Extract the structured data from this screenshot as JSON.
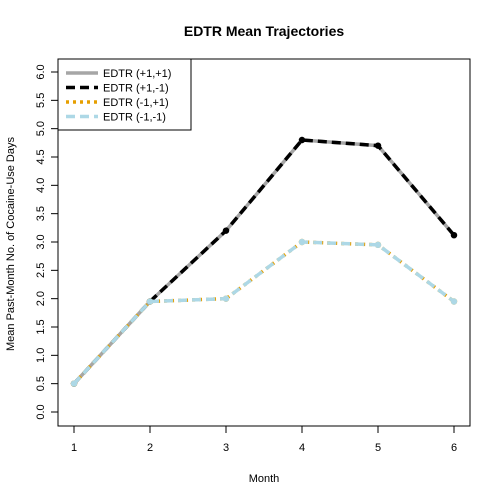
{
  "chart_data": {
    "type": "line",
    "title": "EDTR Mean Trajectories",
    "xlabel": "Month",
    "ylabel": "Mean Past-Month No. of Cocaine-Use Days",
    "x": [
      1,
      2,
      3,
      4,
      5,
      6
    ],
    "xlim": [
      1,
      6
    ],
    "ylim": [
      0,
      6
    ],
    "xticks": [
      "1",
      "2",
      "3",
      "4",
      "5",
      "6"
    ],
    "yticks": [
      "0.0",
      "0.5",
      "1.0",
      "1.5",
      "2.0",
      "2.5",
      "3.0",
      "3.5",
      "4.0",
      "4.5",
      "5.0",
      "5.5",
      "6.0"
    ],
    "grid": false,
    "legend_position": "top-left",
    "series": [
      {
        "name": "EDTR (+1,+1)",
        "values": [
          0.5,
          1.95,
          3.2,
          4.8,
          4.7,
          3.12
        ],
        "color": "#a6a6a6",
        "dash": "solid"
      },
      {
        "name": "EDTR (+1,-1)",
        "values": [
          0.5,
          1.95,
          3.2,
          4.8,
          4.7,
          3.12
        ],
        "color": "#000000",
        "dash": "dashed"
      },
      {
        "name": "EDTR (-1,+1)",
        "values": [
          0.5,
          1.95,
          2.0,
          3.0,
          2.95,
          1.95
        ],
        "color": "#e69f00",
        "dash": "dotted"
      },
      {
        "name": "EDTR (-1,-1)",
        "values": [
          0.5,
          1.95,
          2.0,
          3.0,
          2.95,
          1.95
        ],
        "color": "#add8e6",
        "dash": "dashed"
      }
    ]
  }
}
